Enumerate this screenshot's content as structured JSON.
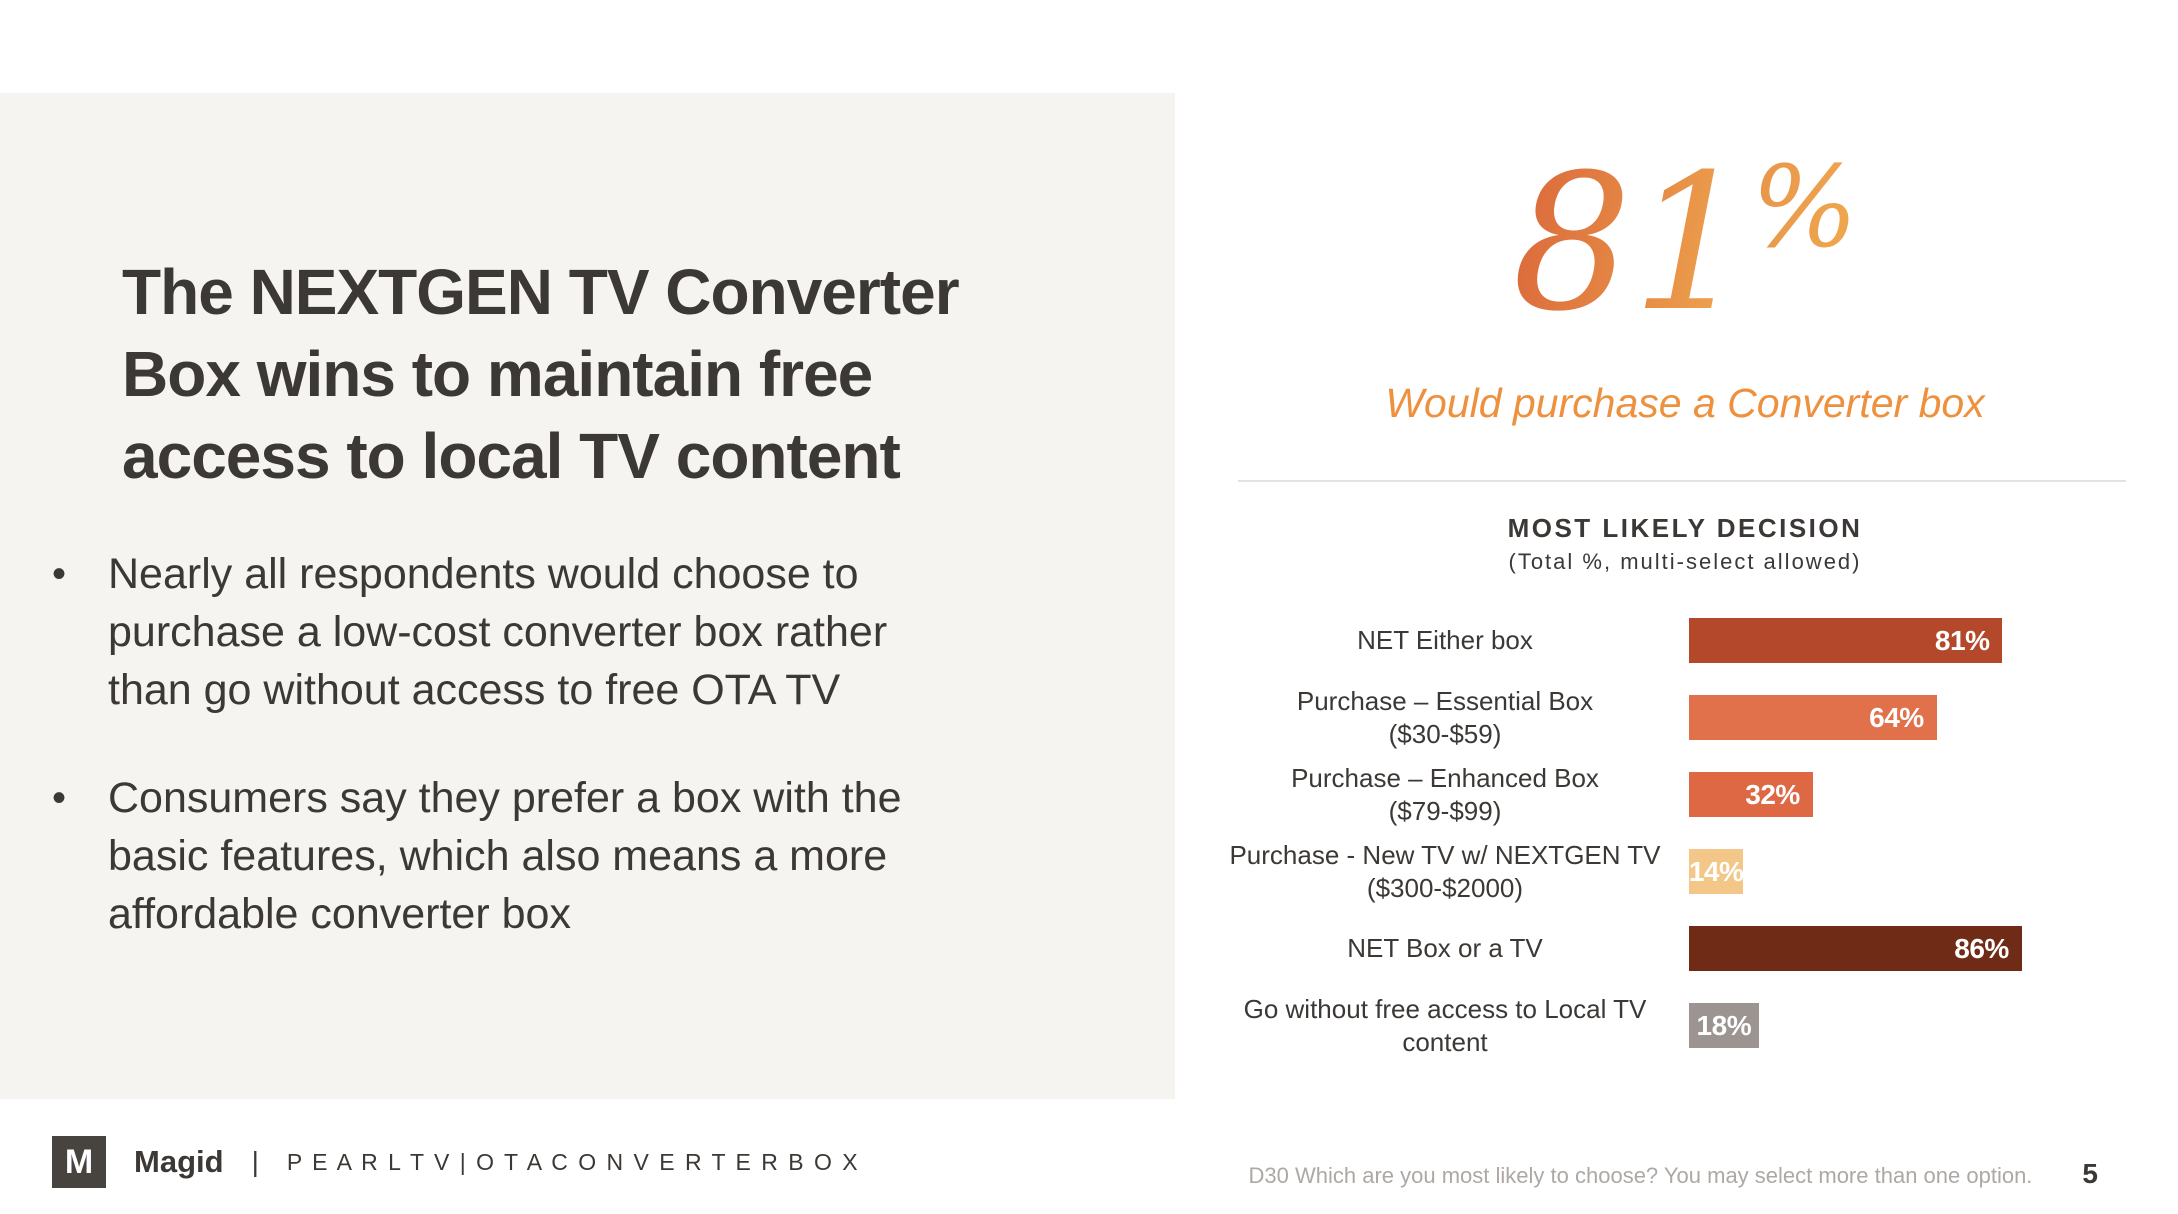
{
  "slide": {
    "title": "The NEXTGEN TV Converter\nBox wins to maintain free\naccess to local TV content",
    "bullet_marker": "•",
    "bullets": [
      "Nearly all respondents would choose to\npurchase a low-cost converter box rather\nthan go without access to free OTA TV",
      "Consumers say they prefer a box with the\nbasic features, which also means a more\naffordable converter box"
    ]
  },
  "stat": {
    "value": "81",
    "percent_sign": "%",
    "caption": "Would purchase a Converter box",
    "accent_color_start": "#dc6c3c",
    "accent_color_end": "#eda04c"
  },
  "chart_data": {
    "type": "bar",
    "orientation": "horizontal",
    "title": "MOST LIKELY DECISION",
    "subtitle": "(Total %, multi-select allowed)",
    "categories": [
      "NET Either box",
      "Purchase – Essential Box\n($30-$59)",
      "Purchase – Enhanced Box\n($79-$99)",
      "Purchase - New TV w/ NEXTGEN TV\n($300-$2000)",
      "NET Box or a TV",
      "Go without free access to Local TV\ncontent"
    ],
    "values": [
      81,
      64,
      32,
      14,
      86,
      18
    ],
    "value_labels": [
      "81%",
      "64%",
      "32%",
      "14%",
      "86%",
      "18%"
    ],
    "bar_colors": [
      "#b4482a",
      "#e0714b",
      "#de6843",
      "#f2c788",
      "#6f2b15",
      "#9b9490"
    ],
    "value_label_color": "#ffffff",
    "xlim": [
      0,
      100
    ],
    "grid": false,
    "legend": false
  },
  "footer": {
    "logo_letter": "M",
    "brand": "Magid",
    "separator": "|",
    "project": "P E A R L   T V   |   O T A   C O N V E R T E R   B O X",
    "source": "D30 Which are you most likely to choose? You may select more than one option.",
    "page_number": "5"
  }
}
